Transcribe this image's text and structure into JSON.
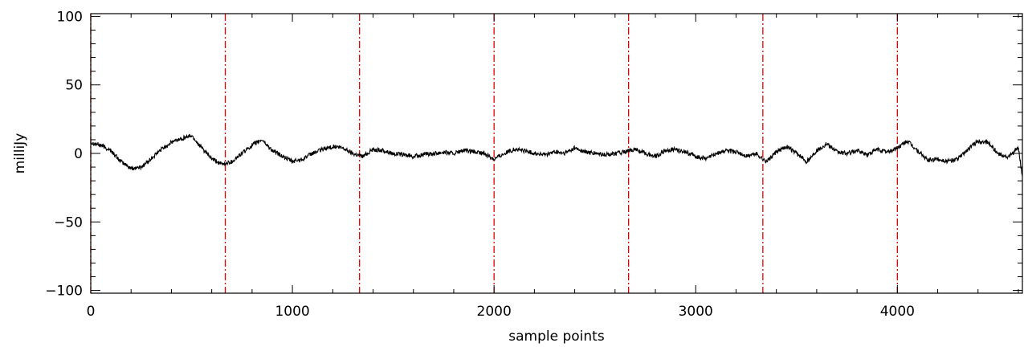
{
  "chart_data": {
    "type": "line",
    "title": "",
    "xlabel": "sample points",
    "ylabel": "milliJy",
    "xlim": [
      0,
      4620
    ],
    "ylim": [
      -102,
      102
    ],
    "x_ticks": [
      0,
      1000,
      2000,
      3000,
      4000
    ],
    "x_tick_labels": [
      "0",
      "1000",
      "2000",
      "3000",
      "4000"
    ],
    "y_ticks": [
      -100,
      -50,
      0,
      50,
      100
    ],
    "y_tick_labels": [
      "−100",
      "−50",
      "0",
      "50",
      "100"
    ],
    "grid": false,
    "legend": "none",
    "vertical_markers": {
      "x": [
        0,
        667,
        1333,
        2000,
        2667,
        3333,
        4000
      ],
      "color": "#e00000",
      "style": "dash-dot"
    },
    "series": [
      {
        "color": "#000000",
        "x": [
          0,
          50,
          100,
          150,
          200,
          250,
          300,
          350,
          400,
          450,
          500,
          550,
          600,
          650,
          700,
          750,
          800,
          850,
          900,
          950,
          1000,
          1050,
          1100,
          1150,
          1200,
          1250,
          1300,
          1350,
          1400,
          1450,
          1500,
          1550,
          1600,
          1650,
          1700,
          1750,
          1800,
          1850,
          1900,
          1950,
          2000,
          2050,
          2100,
          2150,
          2200,
          2250,
          2300,
          2350,
          2400,
          2450,
          2500,
          2550,
          2600,
          2650,
          2700,
          2750,
          2800,
          2850,
          2900,
          2950,
          3000,
          3050,
          3100,
          3150,
          3200,
          3250,
          3300,
          3350,
          3400,
          3450,
          3500,
          3550,
          3600,
          3650,
          3700,
          3750,
          3800,
          3850,
          3900,
          3950,
          4000,
          4050,
          4100,
          4150,
          4200,
          4250,
          4300,
          4350,
          4400,
          4450,
          4500,
          4550,
          4600,
          4620
        ],
        "y": [
          8,
          6,
          2,
          -6,
          -11,
          -10,
          -4,
          3,
          8,
          11,
          13,
          4,
          -4,
          -8,
          -6,
          0,
          6,
          10,
          2,
          -2,
          -6,
          -4,
          0,
          3,
          5,
          4,
          0,
          -2,
          3,
          2,
          0,
          -1,
          -2,
          -1,
          0,
          1,
          0,
          2,
          1,
          0,
          -4,
          0,
          3,
          2,
          0,
          -1,
          1,
          0,
          4,
          1,
          0,
          -1,
          0,
          1,
          3,
          0,
          -2,
          2,
          3,
          1,
          -2,
          -4,
          0,
          2,
          1,
          -2,
          0,
          -6,
          1,
          5,
          0,
          -6,
          2,
          7,
          1,
          0,
          2,
          -1,
          3,
          1,
          4,
          9,
          2,
          -5,
          -4,
          -6,
          -4,
          3,
          9,
          8,
          0,
          -3,
          4,
          -17
        ]
      }
    ]
  }
}
